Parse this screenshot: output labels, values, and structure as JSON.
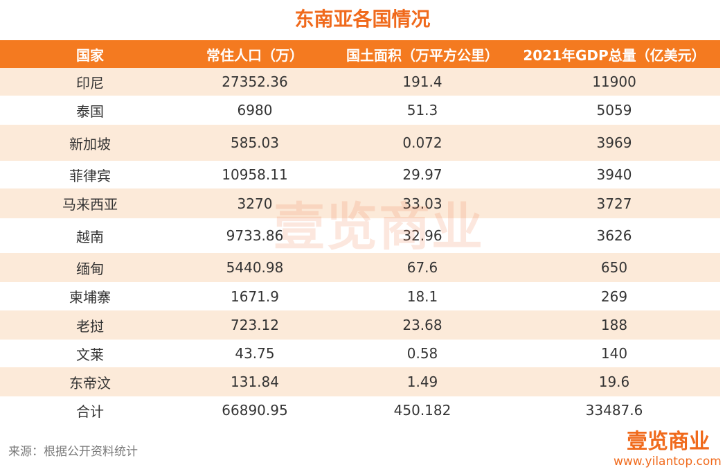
{
  "title": "东南亚各国情况",
  "table": {
    "header": [
      "国家",
      "常住人口（万）",
      "国土面积（万平方公里）",
      "2021年GDP总量（亿美元）"
    ],
    "rows": [
      [
        "印尼",
        "27352.36",
        "191.4",
        "11900"
      ],
      [
        "泰国",
        "6980",
        "51.3",
        "5059"
      ],
      [
        "新加坡",
        "585.03",
        "0.072",
        "3969"
      ],
      [
        "菲律宾",
        "10958.11",
        "29.97",
        "3940"
      ],
      [
        "马来西亚",
        "3270",
        "33.03",
        "3727"
      ],
      [
        "越南",
        "9733.86",
        "32.96",
        "3626"
      ],
      [
        "缅甸",
        "5440.98",
        "67.6",
        "650"
      ],
      [
        "柬埔寨",
        "1671.9",
        "18.1",
        "269"
      ],
      [
        "老挝",
        "723.12",
        "23.68",
        "188"
      ],
      [
        "文莱",
        "43.75",
        "0.58",
        "140"
      ],
      [
        "东帝汶",
        "131.84",
        "1.49",
        "19.6"
      ],
      [
        "合计",
        "66890.95",
        "450.182",
        "33487.6"
      ]
    ]
  },
  "watermark": "壹览商业",
  "source": "来源：根据公开资料统计",
  "logo": "壹览商业",
  "url": "www.yilantop.com"
}
